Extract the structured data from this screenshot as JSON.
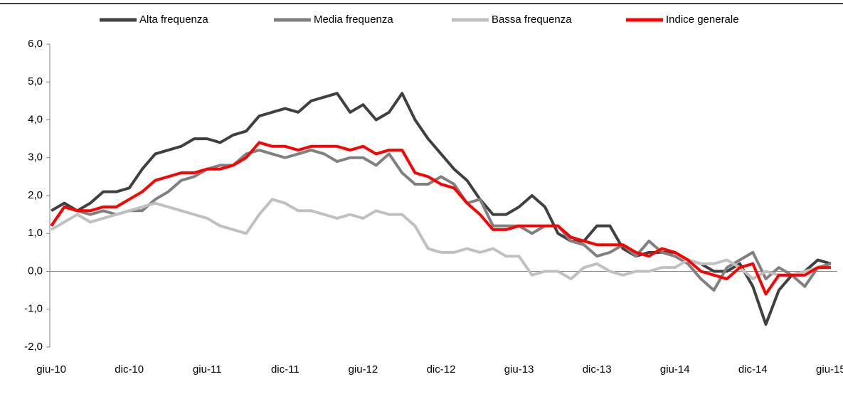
{
  "chart_data": {
    "type": "line",
    "categories": [
      "giu-10",
      null,
      null,
      null,
      null,
      null,
      "dic-10",
      null,
      null,
      null,
      null,
      null,
      "giu-11",
      null,
      null,
      null,
      null,
      null,
      "dic-11",
      null,
      null,
      null,
      null,
      null,
      "giu-12",
      null,
      null,
      null,
      null,
      null,
      "dic-12",
      null,
      null,
      null,
      null,
      null,
      "giu-13",
      null,
      null,
      null,
      null,
      null,
      "dic-13",
      null,
      null,
      null,
      null,
      null,
      "giu-14",
      null,
      null,
      null,
      null,
      null,
      "dic-14",
      null,
      null,
      null,
      null,
      null,
      "giu-15"
    ],
    "series": [
      {
        "name": "Alta frequenza",
        "color": "#404040",
        "values": [
          1.6,
          1.8,
          1.6,
          1.8,
          2.1,
          2.1,
          2.2,
          2.7,
          3.1,
          3.2,
          3.3,
          3.5,
          3.5,
          3.4,
          3.6,
          3.7,
          4.1,
          4.2,
          4.3,
          4.2,
          4.5,
          4.6,
          4.7,
          4.2,
          4.4,
          4.0,
          4.2,
          4.7,
          4.0,
          3.5,
          3.1,
          2.7,
          2.4,
          1.9,
          1.5,
          1.5,
          1.7,
          2.0,
          1.7,
          1.0,
          0.8,
          0.8,
          1.2,
          1.2,
          0.6,
          0.4,
          0.5,
          0.5,
          0.5,
          0.3,
          0.2,
          0.0,
          0.0,
          0.2,
          -0.4,
          -1.4,
          -0.5,
          -0.1,
          0.0,
          0.3,
          0.2
        ]
      },
      {
        "name": "Media frequenza",
        "color": "#808080",
        "values": [
          1.2,
          1.7,
          1.6,
          1.5,
          1.6,
          1.5,
          1.6,
          1.6,
          1.9,
          2.1,
          2.4,
          2.5,
          2.7,
          2.8,
          2.8,
          3.1,
          3.2,
          3.1,
          3.0,
          3.1,
          3.2,
          3.1,
          2.9,
          3.0,
          3.0,
          2.8,
          3.1,
          2.6,
          2.3,
          2.3,
          2.5,
          2.3,
          1.8,
          1.9,
          1.2,
          1.2,
          1.2,
          1.0,
          1.2,
          1.2,
          0.8,
          0.7,
          0.4,
          0.5,
          0.7,
          0.4,
          0.8,
          0.5,
          0.4,
          0.2,
          -0.2,
          -0.5,
          0.1,
          0.3,
          0.5,
          -0.2,
          0.1,
          -0.1,
          -0.4,
          0.1,
          0.2
        ]
      },
      {
        "name": "Bassa frequenza",
        "color": "#c0c0c0",
        "values": [
          1.1,
          1.3,
          1.5,
          1.3,
          1.4,
          1.5,
          1.6,
          1.7,
          1.8,
          1.7,
          1.6,
          1.5,
          1.4,
          1.2,
          1.1,
          1.0,
          1.5,
          1.9,
          1.8,
          1.6,
          1.6,
          1.5,
          1.4,
          1.5,
          1.4,
          1.6,
          1.5,
          1.5,
          1.2,
          0.6,
          0.5,
          0.5,
          0.6,
          0.5,
          0.6,
          0.4,
          0.4,
          -0.1,
          0.0,
          0.0,
          -0.2,
          0.1,
          0.2,
          0.0,
          -0.1,
          0.0,
          0.0,
          0.1,
          0.1,
          0.3,
          0.2,
          0.2,
          0.3,
          0.1,
          -0.2,
          0.0,
          -0.1,
          -0.1,
          0.0,
          0.1,
          0.1
        ]
      },
      {
        "name": "Indice generale",
        "color": "#ff0000",
        "values": [
          1.2,
          1.7,
          1.6,
          1.6,
          1.7,
          1.7,
          1.9,
          2.1,
          2.4,
          2.5,
          2.6,
          2.6,
          2.7,
          2.7,
          2.8,
          3.0,
          3.4,
          3.3,
          3.3,
          3.2,
          3.3,
          3.3,
          3.3,
          3.2,
          3.3,
          3.1,
          3.2,
          3.2,
          2.6,
          2.5,
          2.3,
          2.2,
          1.8,
          1.5,
          1.1,
          1.1,
          1.2,
          1.2,
          1.2,
          1.2,
          0.9,
          0.8,
          0.7,
          0.7,
          0.7,
          0.5,
          0.4,
          0.6,
          0.5,
          0.3,
          0.0,
          -0.1,
          -0.2,
          0.1,
          0.2,
          -0.6,
          -0.1,
          -0.1,
          -0.1,
          0.1,
          0.1
        ]
      }
    ],
    "ylim": [
      -2,
      6
    ],
    "yticks": [
      {
        "value": -2,
        "label": "-2,0"
      },
      {
        "value": -1,
        "label": "-1,0"
      },
      {
        "value": 0,
        "label": "0,0"
      },
      {
        "value": 1,
        "label": "1,0"
      },
      {
        "value": 2,
        "label": "2,0"
      },
      {
        "value": 3,
        "label": "3,0"
      },
      {
        "value": 4,
        "label": "4,0"
      },
      {
        "value": 5,
        "label": "5,0"
      },
      {
        "value": 6,
        "label": "6,0"
      }
    ],
    "legend": "top"
  }
}
